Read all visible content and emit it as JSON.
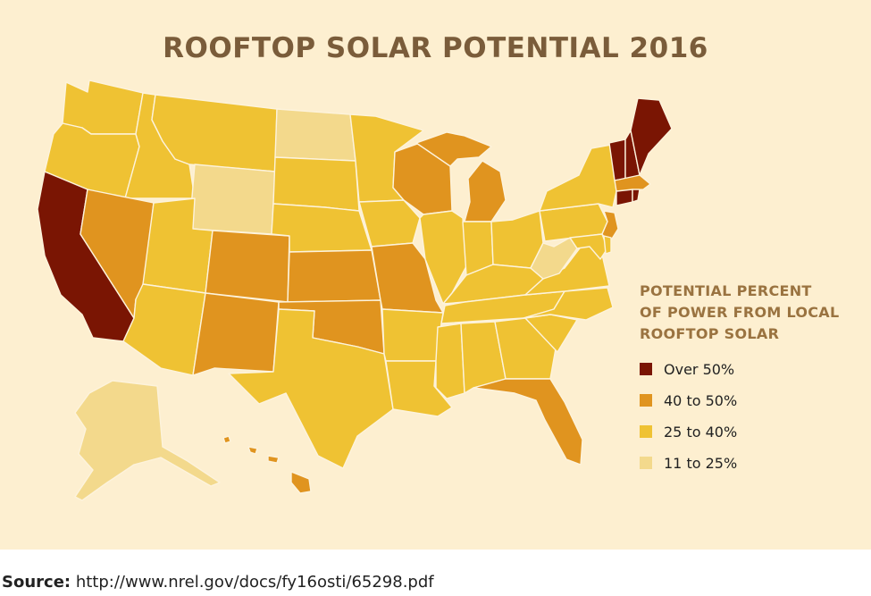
{
  "title": "ROOFTOP SOLAR POTENTIAL 2016",
  "legend": {
    "title_lines": [
      "POTENTIAL PERCENT",
      "OF POWER FROM LOCAL",
      "ROOFTOP SOLAR"
    ],
    "items": [
      {
        "label": "Over 50%",
        "color": "#7a1503"
      },
      {
        "label": "40 to 50%",
        "color": "#e0941f"
      },
      {
        "label": "25 to 40%",
        "color": "#efc233"
      },
      {
        "label": "11 to 25%",
        "color": "#f3d98c"
      }
    ]
  },
  "source": {
    "label": "Source:",
    "url": "http://www.nrel.gov/docs/fy16osti/65298.pdf"
  },
  "colors": {
    "background": "#fdefd0",
    "title": "#7a5c3a",
    "legend_title": "#9a7340",
    "border": "#fdf3dc"
  }
}
